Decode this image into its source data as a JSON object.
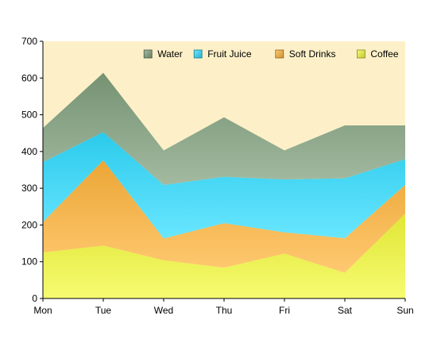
{
  "chart_data": {
    "type": "area",
    "stacked": true,
    "categories": [
      "Mon",
      "Tue",
      "Wed",
      "Thu",
      "Fri",
      "Sat",
      "Sun"
    ],
    "series": [
      {
        "name": "Coffee",
        "color": "#f3fa3a",
        "values": [
          125,
          144,
          104,
          84,
          122,
          70,
          231
        ]
      },
      {
        "name": "Soft Drinks",
        "color": "#ffb43a",
        "values": [
          83,
          232,
          59,
          121,
          58,
          94,
          78
        ]
      },
      {
        "name": "Fruit Juice",
        "color": "#2fdcff",
        "values": [
          163,
          77,
          146,
          126,
          144,
          163,
          70
        ]
      },
      {
        "name": "Water",
        "color": "#7f9f7c",
        "values": [
          93,
          161,
          94,
          162,
          79,
          144,
          92
        ]
      }
    ],
    "ylim": [
      0,
      700
    ],
    "yticks": [
      0,
      100,
      200,
      300,
      400,
      500,
      600,
      700
    ],
    "plot_background": "#fdf0c8",
    "grid": false,
    "legend_position": "top-right",
    "title": "",
    "xlabel": "",
    "ylabel": ""
  }
}
